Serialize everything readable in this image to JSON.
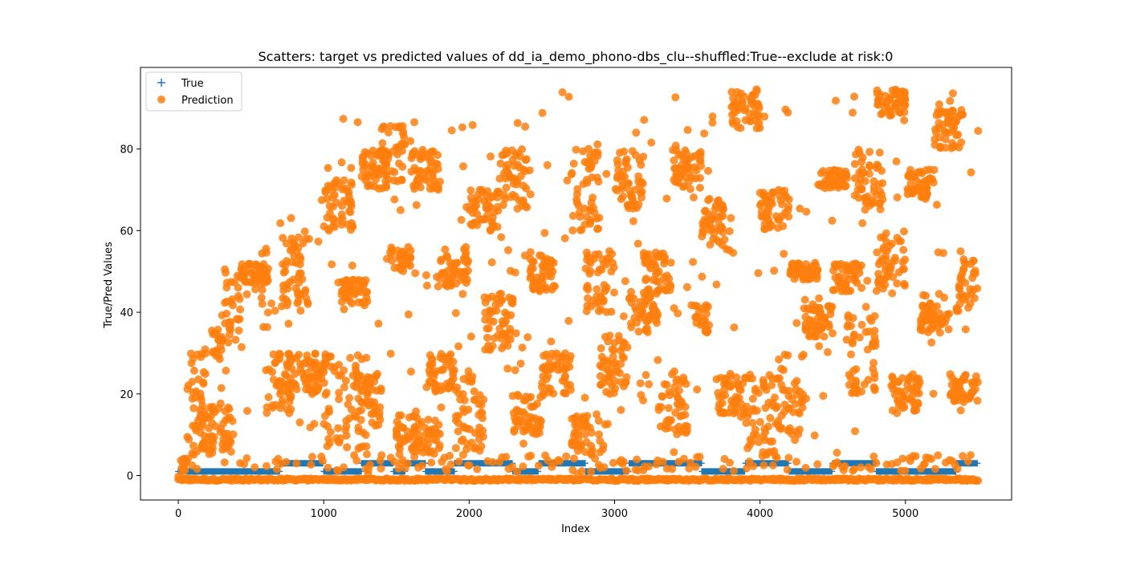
{
  "chart_data": {
    "type": "scatter",
    "title": "Scatters: target vs predicted values of dd_ia_demo_phono-dbs_clu--shuffled:True--exclude at risk:0",
    "xlabel": "Index",
    "ylabel": "True/Pred Values",
    "xlim": [
      -260,
      5730
    ],
    "ylim": [
      -6,
      100
    ],
    "xticks": [
      0,
      1000,
      2000,
      3000,
      4000,
      5000
    ],
    "yticks": [
      0,
      20,
      40,
      60,
      80
    ],
    "x_count": 5500,
    "grid": false,
    "legend": {
      "position": "top-left"
    },
    "series": [
      {
        "name": "True",
        "marker": "plus",
        "color": "#1f77b4",
        "segments": [
          {
            "x": [
              0,
              480
            ],
            "y": 1
          },
          {
            "x": [
              480,
              700
            ],
            "y": 1
          },
          {
            "x": [
              700,
              1000
            ],
            "y": 3
          },
          {
            "x": [
              1000,
              1260
            ],
            "y": 1
          },
          {
            "x": [
              1260,
              1480
            ],
            "y": 3
          },
          {
            "x": [
              1480,
              1560
            ],
            "y": 1
          },
          {
            "x": [
              1560,
              1700
            ],
            "y": 3
          },
          {
            "x": [
              1700,
              1900
            ],
            "y": 1
          },
          {
            "x": [
              1900,
              2300
            ],
            "y": 3
          },
          {
            "x": [
              2300,
              2480
            ],
            "y": 1
          },
          {
            "x": [
              2480,
              2800
            ],
            "y": 3
          },
          {
            "x": [
              2800,
              3100
            ],
            "y": 1
          },
          {
            "x": [
              3100,
              3600
            ],
            "y": 3
          },
          {
            "x": [
              3600,
              3900
            ],
            "y": 1
          },
          {
            "x": [
              3900,
              4200
            ],
            "y": 3
          },
          {
            "x": [
              4200,
              4500
            ],
            "y": 1
          },
          {
            "x": [
              4500,
              4800
            ],
            "y": 3
          },
          {
            "x": [
              4800,
              5100
            ],
            "y": 1
          },
          {
            "x": [
              5100,
              5350
            ],
            "y": 1
          },
          {
            "x": [
              5350,
              5500
            ],
            "y": 3
          }
        ]
      },
      {
        "name": "Prediction",
        "marker": "circle",
        "color": "#ff7f0e",
        "clusters": [
          {
            "x": [
              0,
              60
            ],
            "y": [
              -1,
              5
            ]
          },
          {
            "x": [
              60,
              200
            ],
            "y": [
              5,
              30
            ]
          },
          {
            "x": [
              150,
              380
            ],
            "y": [
              5,
              17
            ]
          },
          {
            "x": [
              230,
              300
            ],
            "y": [
              28,
              36
            ]
          },
          {
            "x": [
              320,
              430
            ],
            "y": [
              35,
              52
            ]
          },
          {
            "x": [
              430,
              620
            ],
            "y": [
              47,
              52
            ]
          },
          {
            "x": [
              560,
              620
            ],
            "y": [
              36,
              56
            ]
          },
          {
            "x": [
              600,
              800
            ],
            "y": [
              15,
              30
            ]
          },
          {
            "x": [
              700,
              900
            ],
            "y": [
              42,
              60
            ]
          },
          {
            "x": [
              750,
              1000
            ],
            "y": [
              20,
              30
            ]
          },
          {
            "x": [
              1000,
              1200
            ],
            "y": [
              60,
              73
            ]
          },
          {
            "x": [
              1000,
              1300
            ],
            "y": [
              5,
              30
            ]
          },
          {
            "x": [
              1100,
              1300
            ],
            "y": [
              42,
              48
            ]
          },
          {
            "x": [
              1250,
              1450
            ],
            "y": [
              70,
              80
            ]
          },
          {
            "x": [
              1250,
              1400
            ],
            "y": [
              12,
              25
            ]
          },
          {
            "x": [
              1380,
              1560
            ],
            "y": [
              72,
              86
            ]
          },
          {
            "x": [
              1450,
              1600
            ],
            "y": [
              50,
              56
            ]
          },
          {
            "x": [
              1500,
              1800
            ],
            "y": [
              5,
              15
            ]
          },
          {
            "x": [
              1600,
              1800
            ],
            "y": [
              70,
              80
            ]
          },
          {
            "x": [
              1700,
              1900
            ],
            "y": [
              20,
              30
            ]
          },
          {
            "x": [
              1800,
              2000
            ],
            "y": [
              46,
              56
            ]
          },
          {
            "x": [
              1900,
              2100
            ],
            "y": [
              5,
              25
            ]
          },
          {
            "x": [
              2000,
              2200
            ],
            "y": [
              60,
              70
            ]
          },
          {
            "x": [
              2100,
              2300
            ],
            "y": [
              30,
              45
            ]
          },
          {
            "x": [
              2200,
              2400
            ],
            "y": [
              65,
              80
            ]
          },
          {
            "x": [
              2300,
              2500
            ],
            "y": [
              10,
              20
            ]
          },
          {
            "x": [
              2400,
              2600
            ],
            "y": [
              45,
              55
            ]
          },
          {
            "x": [
              2500,
              2700
            ],
            "y": [
              20,
              30
            ]
          },
          {
            "x": [
              2700,
              2900
            ],
            "y": [
              60,
              80
            ]
          },
          {
            "x": [
              2700,
              2900
            ],
            "y": [
              5,
              15
            ]
          },
          {
            "x": [
              2800,
              3000
            ],
            "y": [
              40,
              55
            ]
          },
          {
            "x": [
              2900,
              3100
            ],
            "y": [
              20,
              35
            ]
          },
          {
            "x": [
              3000,
              3200
            ],
            "y": [
              65,
              80
            ]
          },
          {
            "x": [
              3100,
              3300
            ],
            "y": [
              35,
              45
            ]
          },
          {
            "x": [
              3200,
              3400
            ],
            "y": [
              45,
              55
            ]
          },
          {
            "x": [
              3300,
              3500
            ],
            "y": [
              10,
              25
            ]
          },
          {
            "x": [
              3400,
              3600
            ],
            "y": [
              70,
              80
            ]
          },
          {
            "x": [
              3550,
              3650
            ],
            "y": [
              35,
              42
            ]
          },
          {
            "x": [
              3600,
              3800
            ],
            "y": [
              55,
              68
            ]
          },
          {
            "x": [
              3700,
              3900
            ],
            "y": [
              15,
              25
            ]
          },
          {
            "x": [
              3800,
              4000
            ],
            "y": [
              85,
              95
            ]
          },
          {
            "x": [
              3900,
              4100
            ],
            "y": [
              5,
              25
            ]
          },
          {
            "x": [
              4000,
              4200
            ],
            "y": [
              60,
              70
            ]
          },
          {
            "x": [
              4100,
              4300
            ],
            "y": [
              10,
              30
            ]
          },
          {
            "x": [
              4200,
              4400
            ],
            "y": [
              48,
              52
            ]
          },
          {
            "x": [
              4300,
              4500
            ],
            "y": [
              34,
              42
            ]
          },
          {
            "x": [
              4400,
              4600
            ],
            "y": [
              70,
              75
            ]
          },
          {
            "x": [
              4500,
              4700
            ],
            "y": [
              45,
              52
            ]
          },
          {
            "x": [
              4600,
              4800
            ],
            "y": [
              20,
              40
            ]
          },
          {
            "x": [
              4650,
              4850
            ],
            "y": [
              65,
              80
            ]
          },
          {
            "x": [
              4800,
              5000
            ],
            "y": [
              88,
              95
            ]
          },
          {
            "x": [
              4800,
              5000
            ],
            "y": [
              45,
              60
            ]
          },
          {
            "x": [
              4900,
              5100
            ],
            "y": [
              15,
              25
            ]
          },
          {
            "x": [
              5000,
              5200
            ],
            "y": [
              68,
              75
            ]
          },
          {
            "x": [
              5100,
              5300
            ],
            "y": [
              35,
              45
            ]
          },
          {
            "x": [
              5200,
              5400
            ],
            "y": [
              80,
              90
            ]
          },
          {
            "x": [
              5300,
              5500
            ],
            "y": [
              18,
              25
            ]
          },
          {
            "x": [
              5350,
              5500
            ],
            "y": [
              40,
              55
            ]
          }
        ],
        "baseline_y": -1,
        "baseline_y2": 3
      }
    ]
  }
}
